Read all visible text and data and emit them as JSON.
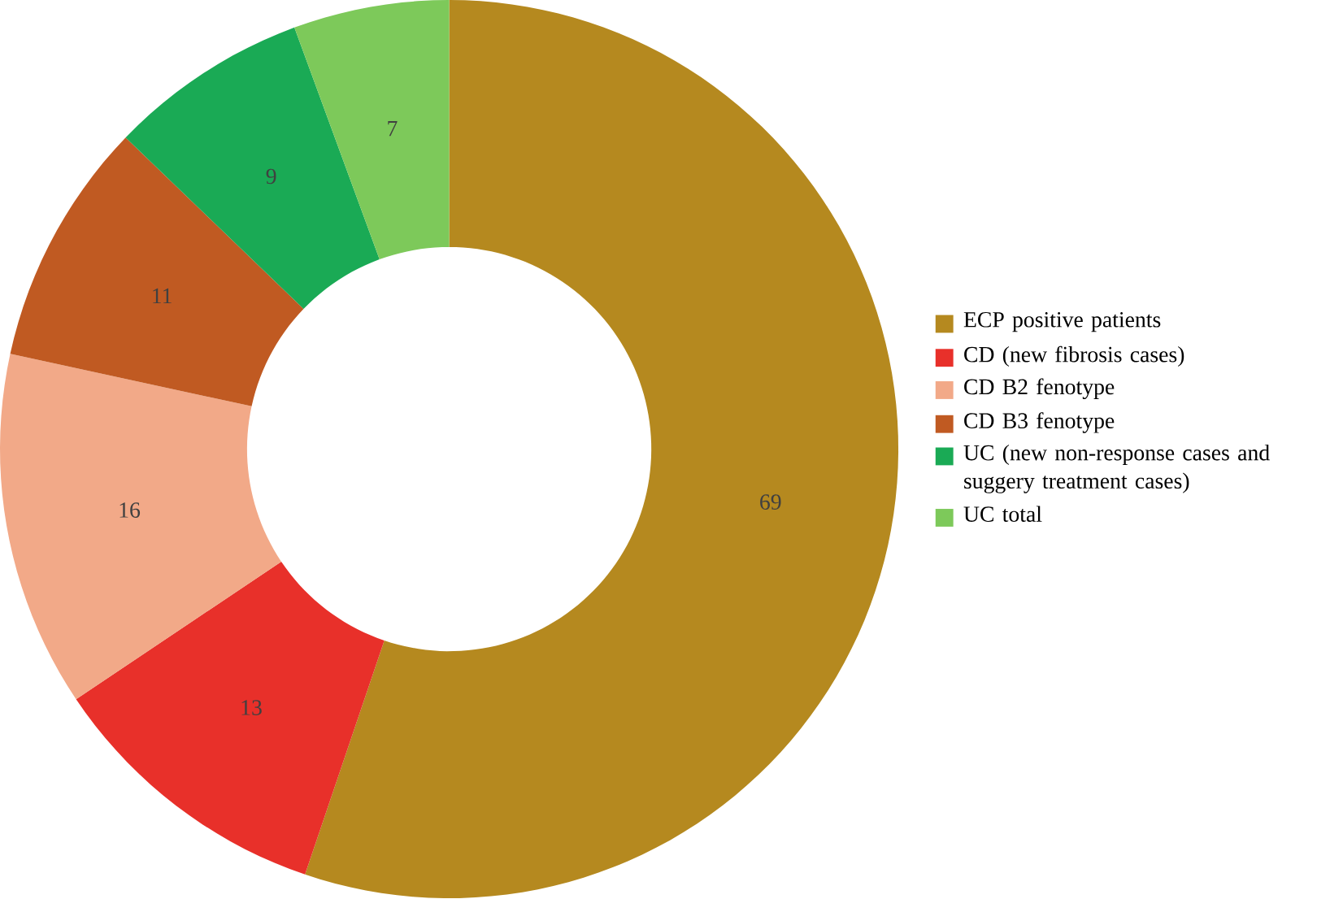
{
  "chart_data": {
    "type": "donut",
    "categories": [
      "ECP positive patients",
      "CD (new fibrosis cases)",
      "CD B2 fenotype",
      "CD B3 fenotype",
      "UC (new non-response cases and suggery treatment cases)",
      "UC total"
    ],
    "values": [
      69,
      13,
      16,
      11,
      9,
      7
    ],
    "colors": [
      "#b5891f",
      "#e8302a",
      "#f2a988",
      "#c05a22",
      "#1aaa55",
      "#7dc95a"
    ],
    "data_labels": true,
    "legend": "right"
  }
}
